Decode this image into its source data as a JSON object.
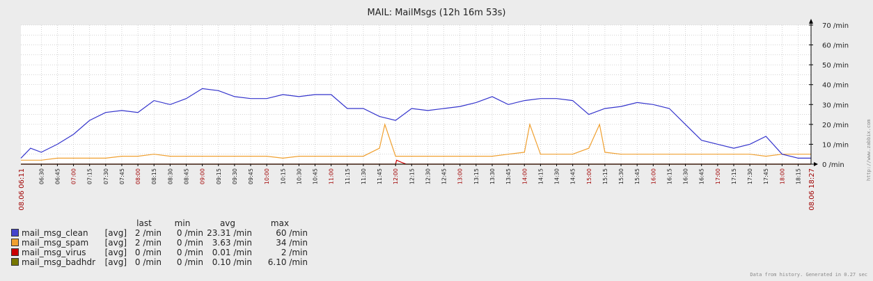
{
  "chart_data": {
    "type": "line",
    "title": "MAIL: MailMsgs  (12h 16m 53s)",
    "y_unit": "/min",
    "ylim": [
      0,
      70
    ],
    "y_ticks": [
      "0 /min",
      "10 /min",
      "20 /min",
      "30 /min",
      "40 /min",
      "50 /min",
      "60 /min",
      "70 /min"
    ],
    "x_start_label": "08.06 06:11",
    "x_end_label": "08.06 18:27",
    "x_ticks": [
      "06:30",
      "06:45",
      "07:00",
      "07:15",
      "07:30",
      "07:45",
      "08:00",
      "08:15",
      "08:30",
      "08:45",
      "09:00",
      "09:15",
      "09:30",
      "09:45",
      "10:00",
      "10:15",
      "10:30",
      "10:45",
      "11:00",
      "11:15",
      "11:30",
      "11:45",
      "12:00",
      "12:15",
      "12:30",
      "12:45",
      "13:00",
      "13:15",
      "13:30",
      "13:45",
      "14:00",
      "14:15",
      "14:30",
      "14:45",
      "15:00",
      "15:15",
      "15:30",
      "15:45",
      "16:00",
      "16:15",
      "16:30",
      "16:45",
      "17:00",
      "17:15",
      "17:30",
      "17:45",
      "18:00",
      "18:15"
    ],
    "series": [
      {
        "name": "mail_msg_clean",
        "color": "#3333cc",
        "times": [
          "06:11",
          "06:20",
          "06:30",
          "06:45",
          "07:00",
          "07:15",
          "07:30",
          "07:45",
          "08:00",
          "08:15",
          "08:30",
          "08:45",
          "09:00",
          "09:15",
          "09:30",
          "09:45",
          "10:00",
          "10:15",
          "10:30",
          "10:45",
          "11:00",
          "11:15",
          "11:30",
          "11:45",
          "12:00",
          "12:15",
          "12:30",
          "12:45",
          "13:00",
          "13:15",
          "13:30",
          "13:45",
          "14:00",
          "14:15",
          "14:30",
          "14:45",
          "15:00",
          "15:15",
          "15:30",
          "15:45",
          "16:00",
          "16:15",
          "16:30",
          "16:45",
          "17:00",
          "17:15",
          "17:30",
          "17:45",
          "18:00",
          "18:15",
          "18:27"
        ],
        "values": [
          3,
          8,
          6,
          10,
          15,
          22,
          26,
          27,
          26,
          32,
          30,
          33,
          38,
          37,
          34,
          33,
          33,
          35,
          34,
          35,
          35,
          28,
          28,
          24,
          22,
          28,
          27,
          28,
          29,
          31,
          34,
          30,
          32,
          33,
          33,
          32,
          25,
          28,
          29,
          31,
          30,
          28,
          20,
          12,
          10,
          8,
          10,
          14,
          5,
          3,
          3
        ]
      },
      {
        "name": "mail_msg_spam",
        "color": "#f0a030",
        "times": [
          "06:11",
          "06:30",
          "06:45",
          "07:00",
          "07:15",
          "07:30",
          "07:45",
          "08:00",
          "08:15",
          "08:30",
          "08:45",
          "09:00",
          "09:15",
          "09:30",
          "09:45",
          "10:00",
          "10:15",
          "10:30",
          "10:45",
          "11:00",
          "11:15",
          "11:30",
          "11:45",
          "11:50",
          "12:00",
          "12:15",
          "12:30",
          "12:45",
          "13:00",
          "13:15",
          "13:30",
          "13:45",
          "14:00",
          "14:05",
          "14:15",
          "14:30",
          "14:45",
          "15:00",
          "15:10",
          "15:15",
          "15:30",
          "15:45",
          "16:00",
          "16:15",
          "16:30",
          "16:45",
          "17:00",
          "17:15",
          "17:30",
          "17:45",
          "18:00",
          "18:15",
          "18:27"
        ],
        "values": [
          2,
          2,
          3,
          3,
          3,
          3,
          4,
          4,
          5,
          4,
          4,
          4,
          4,
          4,
          4,
          4,
          3,
          4,
          4,
          4,
          4,
          4,
          8,
          20,
          4,
          4,
          4,
          4,
          4,
          4,
          4,
          5,
          6,
          20,
          5,
          5,
          5,
          8,
          20,
          6,
          5,
          5,
          5,
          5,
          5,
          5,
          5,
          5,
          5,
          4,
          5,
          5,
          5
        ]
      },
      {
        "name": "mail_msg_virus",
        "color": "#cc0000",
        "times": [
          "06:11",
          "12:00",
          "12:01",
          "12:05",
          "12:10",
          "18:27"
        ],
        "values": [
          0,
          0,
          2,
          1,
          0,
          0
        ]
      },
      {
        "name": "mail_msg_badhdr",
        "color": "#777700",
        "times": [
          "06:11",
          "09:00",
          "12:00",
          "15:00",
          "18:27"
        ],
        "values": [
          0,
          0,
          0,
          0,
          0
        ]
      }
    ],
    "legend_headers": [
      "last",
      "min",
      "avg",
      "max"
    ],
    "legend": [
      {
        "name": "mail_msg_clean",
        "fn": "[avg]",
        "last": "2 /min",
        "min": "0 /min",
        "avg": "23.31 /min",
        "max": "60 /min",
        "color": "#4444cc"
      },
      {
        "name": "mail_msg_spam",
        "fn": "[avg]",
        "last": "2 /min",
        "min": "0 /min",
        "avg": "3.63 /min",
        "max": "34 /min",
        "color": "#f0a030"
      },
      {
        "name": "mail_msg_virus",
        "fn": "[avg]",
        "last": "0 /min",
        "min": "0 /min",
        "avg": "0.01 /min",
        "max": "2 /min",
        "color": "#cc0000"
      },
      {
        "name": "mail_msg_badhdr",
        "fn": "[avg]",
        "last": "0 /min",
        "min": "0 /min",
        "avg": "0.10 /min",
        "max": "6.10 /min",
        "color": "#777700"
      }
    ],
    "grid": true
  },
  "footer": "Data from history. Generated in 0.27 sec",
  "watermark": "http://www.zabbix.com"
}
